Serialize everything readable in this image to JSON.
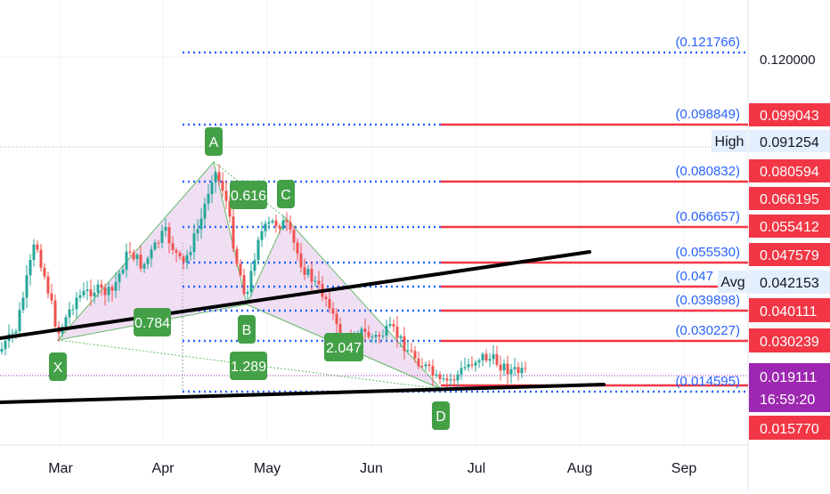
{
  "chart_data": {
    "type": "candlestick",
    "x_ticks": [
      "Mar",
      "Apr",
      "May",
      "Jun",
      "Jul",
      "Aug",
      "Sep"
    ],
    "y_ticks": [
      "0.120000"
    ],
    "price_tags": [
      {
        "id": "tag-0990",
        "value": "0.099043",
        "color": "#f23645"
      },
      {
        "id": "tag-0912",
        "value": "0.091254",
        "color": "#e3effd",
        "label": "High"
      },
      {
        "id": "tag-0806",
        "value": "0.080594",
        "color": "#f23645"
      },
      {
        "id": "tag-0662",
        "value": "0.066195",
        "color": "#f23645"
      },
      {
        "id": "tag-0554",
        "value": "0.055412",
        "color": "#f23645"
      },
      {
        "id": "tag-0476",
        "value": "0.047579",
        "color": "#f23645"
      },
      {
        "id": "tag-0422",
        "value": "0.042153",
        "color": "#e3effd",
        "label": "Avg"
      },
      {
        "id": "tag-0401",
        "value": "0.040111",
        "color": "#f23645"
      },
      {
        "id": "tag-0302",
        "value": "0.030239",
        "color": "#f23645"
      },
      {
        "id": "tag-0191",
        "value": "0.019111",
        "color": "#9c27b0"
      },
      {
        "id": "tag-time",
        "value": "16:59:20",
        "color": "#9c27b0"
      },
      {
        "id": "tag-0158",
        "value": "0.015770",
        "color": "#f23645"
      }
    ],
    "fib_levels": [
      "(0.121766)",
      "(0.098849)",
      "(0.080832)",
      "(0.066657)",
      "(0.055530)",
      "(0.047",
      "(0.039898)",
      "(0.030227)",
      "(0.014595)"
    ],
    "pattern_points": [
      "X",
      "A",
      "B",
      "C",
      "D"
    ],
    "ratios": [
      "0.784",
      "0.616",
      "1.289",
      "2.047"
    ],
    "colors": {
      "up": "#26a69a",
      "down": "#ef5350",
      "label": "#43a047",
      "fib": "#2962ff",
      "pattern": "#e1bee7"
    }
  }
}
